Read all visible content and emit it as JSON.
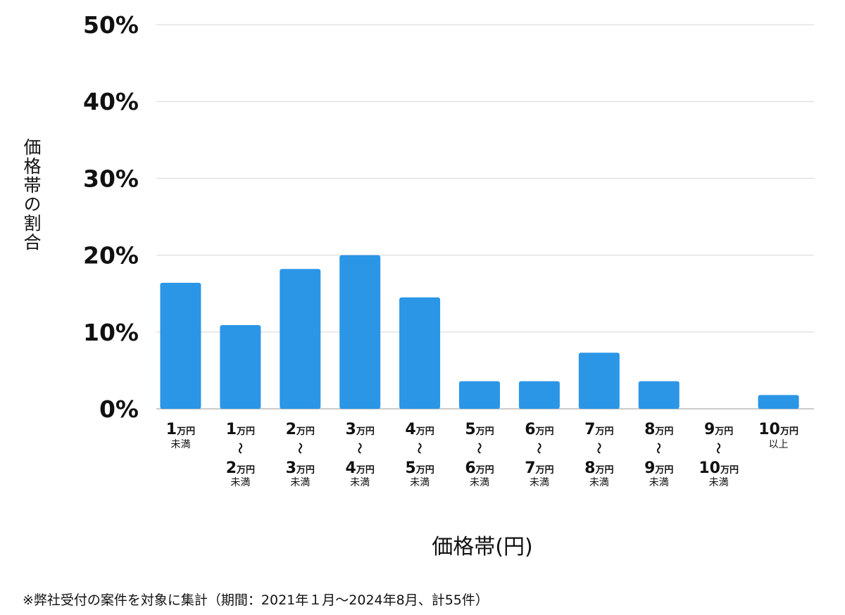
{
  "chart_data": {
    "type": "bar",
    "xlabel": "価格帯(円)",
    "ylabel": "価格帯の割合",
    "ylim": [
      0,
      50
    ],
    "yticks": [
      "0%",
      "10%",
      "20%",
      "30%",
      "40%",
      "50%"
    ],
    "ytick_values": [
      0,
      10,
      20,
      30,
      40,
      50
    ],
    "grid": true,
    "bar_color": "#2b96e6",
    "categories": [
      {
        "lo": "1",
        "hi": "",
        "suffix": "未満"
      },
      {
        "lo": "1",
        "hi": "2",
        "suffix": "未満"
      },
      {
        "lo": "2",
        "hi": "3",
        "suffix": "未満"
      },
      {
        "lo": "3",
        "hi": "4",
        "suffix": "未満"
      },
      {
        "lo": "4",
        "hi": "5",
        "suffix": "未満"
      },
      {
        "lo": "5",
        "hi": "6",
        "suffix": "未満"
      },
      {
        "lo": "6",
        "hi": "7",
        "suffix": "未満"
      },
      {
        "lo": "7",
        "hi": "8",
        "suffix": "未満"
      },
      {
        "lo": "8",
        "hi": "9",
        "suffix": "未満"
      },
      {
        "lo": "9",
        "hi": "10",
        "suffix": "未満"
      },
      {
        "lo": "10",
        "hi": "",
        "suffix": "以上"
      }
    ],
    "unit": "万円",
    "range_mark": "〜",
    "values": [
      16.4,
      10.9,
      18.2,
      20.0,
      14.5,
      3.6,
      3.6,
      7.3,
      3.6,
      0.0,
      1.8
    ]
  },
  "footnote": "※弊社受付の案件を対象に集計（期間：2021年１月〜2024年8月、計55件）"
}
